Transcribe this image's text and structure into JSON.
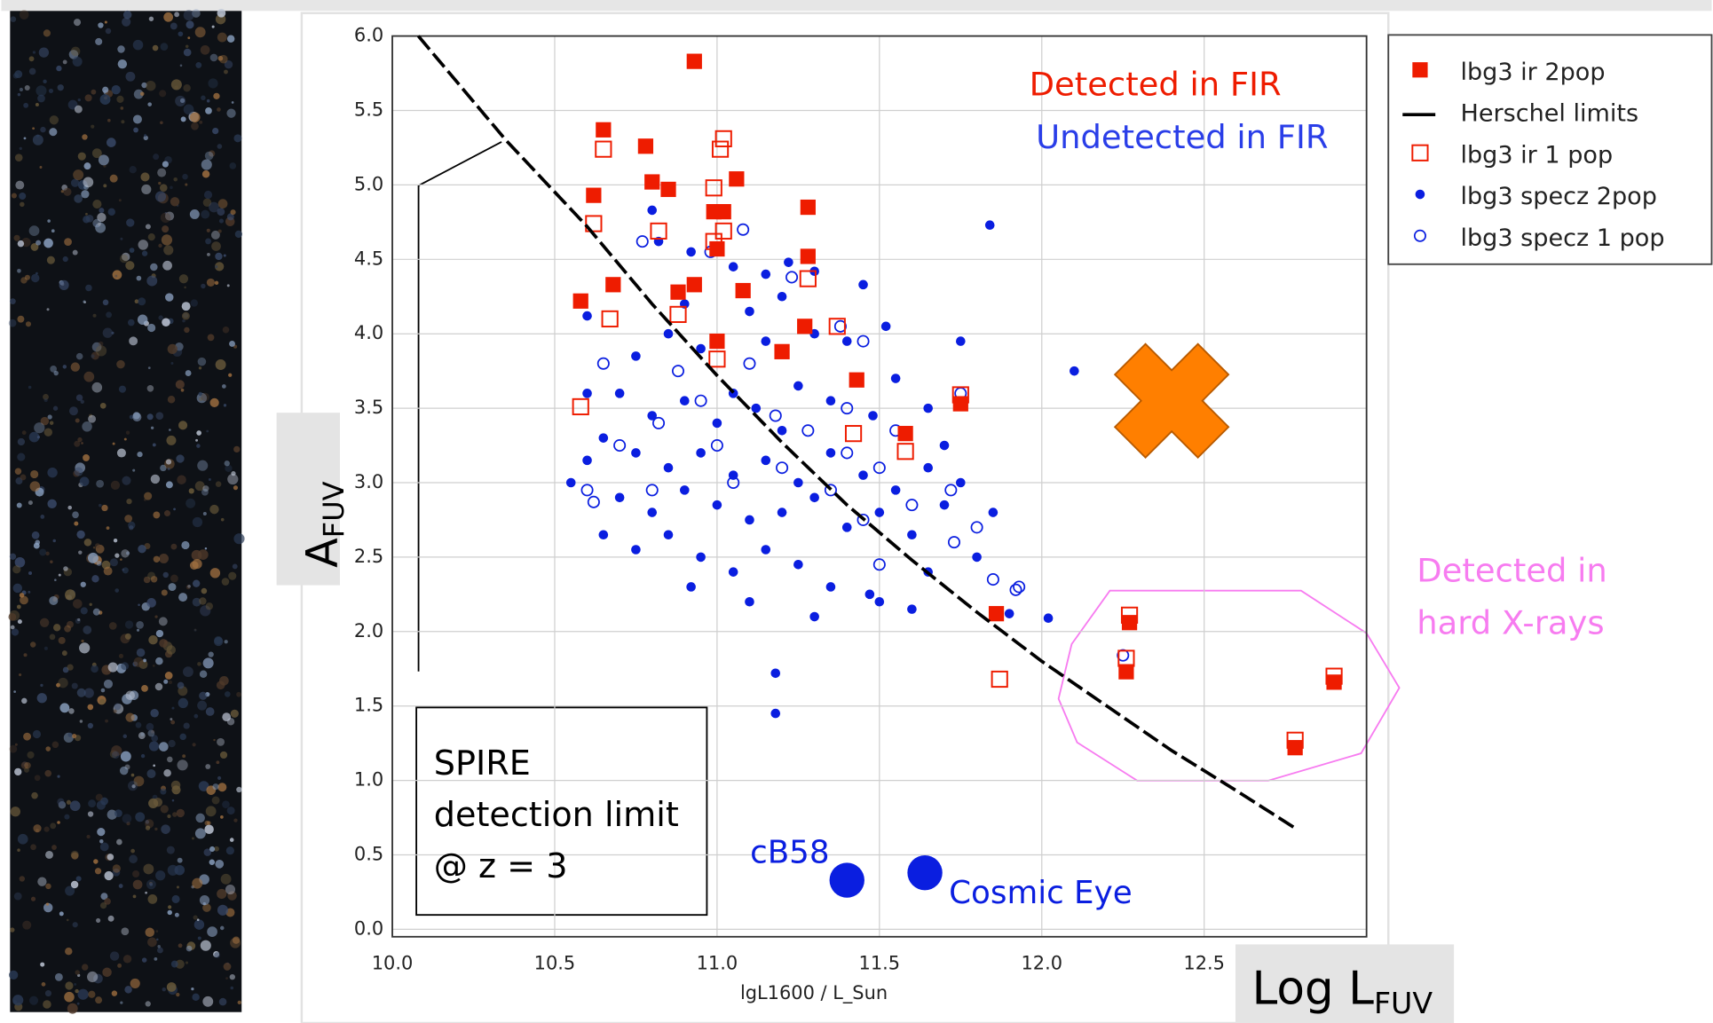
{
  "chart_data": {
    "type": "scatter",
    "x_label": "lgL1600 / L_Sun",
    "y_label_big": {
      "main": "A",
      "sub": "FUV"
    },
    "x_label_big": {
      "main": "Log L",
      "sub": "FUV"
    },
    "xlim": [
      10.0,
      13.0
    ],
    "ylim": [
      -0.05,
      6.0
    ],
    "xticks": [
      {
        "value": 10,
        "label": "10.0"
      },
      10.5,
      {
        "value": 11,
        "label": "11.0"
      },
      11.5,
      {
        "value": 12,
        "label": "12.0"
      },
      12.5
    ],
    "yticks": [
      {
        "value": 0,
        "label": "0.0"
      },
      0.5,
      {
        "value": 1,
        "label": "1.0"
      },
      1.5,
      {
        "value": 2,
        "label": "2.0"
      },
      2.5,
      {
        "value": 3,
        "label": "3.0"
      },
      3.5,
      {
        "value": 4,
        "label": "4.0"
      },
      4.5,
      {
        "value": 5,
        "label": "5.0"
      },
      5.5,
      {
        "value": 6,
        "label": "6.0"
      }
    ],
    "grid": true,
    "series": [
      {
        "name": "lbg3 ir 2pop",
        "type": "scatter",
        "marker": "square-filled",
        "color": "#ee1c00",
        "x": [
          10.93,
          10.65,
          10.78,
          10.62,
          10.8,
          10.85,
          11.06,
          11.02,
          10.99,
          11.28,
          11.0,
          11.28,
          10.58,
          10.68,
          10.88,
          10.93,
          11.08,
          11.0,
          11.2,
          11.27,
          11.43,
          11.58,
          11.75,
          11.86,
          12.27,
          12.26,
          12.78,
          12.9
        ],
        "values": [
          5.83,
          5.37,
          5.26,
          4.93,
          5.02,
          4.97,
          5.04,
          4.82,
          4.82,
          4.85,
          4.57,
          4.52,
          4.22,
          4.33,
          4.28,
          4.33,
          4.29,
          3.95,
          3.88,
          4.05,
          3.69,
          3.33,
          3.53,
          2.12,
          2.06,
          1.73,
          1.22,
          1.66
        ]
      },
      {
        "name": "Herschel limits",
        "type": "line",
        "color": "#000000",
        "x": [
          10.08,
          10.35,
          10.6,
          10.8,
          11.0,
          11.2,
          11.4,
          11.6,
          11.8,
          12.0,
          12.2,
          12.4,
          12.6,
          12.78
        ],
        "values": [
          6.0,
          5.3,
          4.72,
          4.2,
          3.72,
          3.27,
          2.85,
          2.48,
          2.13,
          1.8,
          1.5,
          1.2,
          0.93,
          0.68
        ]
      },
      {
        "name": "lbg3 ir 1 pop",
        "type": "scatter",
        "marker": "square-open",
        "color": "#ee1c00",
        "x": [
          10.65,
          11.02,
          11.01,
          10.99,
          11.02,
          10.62,
          10.82,
          10.99,
          10.67,
          10.88,
          11.0,
          11.28,
          11.37,
          10.58,
          11.42,
          11.58,
          11.75,
          11.87,
          12.26,
          12.27,
          12.78,
          12.9
        ],
        "values": [
          5.24,
          5.31,
          5.24,
          4.98,
          4.69,
          4.74,
          4.69,
          4.62,
          4.1,
          4.13,
          3.83,
          4.37,
          4.05,
          3.51,
          3.33,
          3.21,
          3.59,
          1.68,
          1.82,
          2.11,
          1.27,
          1.7
        ]
      },
      {
        "name": "lbg3 specz 2pop",
        "type": "scatter",
        "marker": "dot-filled",
        "color": "#0a1ee0",
        "x": [
          10.8,
          10.82,
          10.92,
          11.05,
          11.15,
          11.22,
          11.3,
          11.45,
          10.9,
          11.1,
          11.2,
          10.85,
          10.95,
          11.15,
          11.3,
          11.4,
          11.52,
          11.75,
          12.1,
          11.84,
          10.6,
          10.75,
          10.7,
          10.8,
          10.9,
          11.0,
          11.05,
          11.12,
          11.2,
          11.25,
          11.35,
          11.48,
          11.55,
          11.65,
          10.65,
          10.75,
          10.85,
          10.95,
          11.05,
          11.15,
          11.25,
          11.35,
          11.45,
          11.55,
          11.65,
          10.6,
          10.55,
          10.7,
          10.8,
          10.9,
          11.0,
          11.1,
          11.2,
          11.3,
          11.4,
          11.5,
          11.6,
          11.7,
          10.75,
          10.85,
          10.95,
          11.05,
          11.15,
          11.25,
          11.35,
          11.5,
          11.65,
          11.8,
          10.65,
          10.92,
          11.1,
          11.3,
          11.47,
          11.6,
          11.9,
          12.02,
          11.18,
          11.18,
          10.6,
          11.7,
          11.85,
          11.75,
          12.26
        ],
        "values": [
          4.83,
          4.62,
          4.55,
          4.45,
          4.4,
          4.48,
          4.42,
          4.33,
          4.2,
          4.15,
          4.25,
          4.0,
          3.9,
          3.95,
          4.0,
          3.95,
          4.05,
          3.95,
          3.75,
          4.73,
          4.12,
          3.85,
          3.6,
          3.45,
          3.55,
          3.4,
          3.6,
          3.5,
          3.35,
          3.65,
          3.55,
          3.45,
          3.7,
          3.5,
          3.3,
          3.2,
          3.1,
          3.2,
          3.05,
          3.15,
          3.0,
          3.2,
          3.05,
          2.95,
          3.1,
          3.15,
          3.0,
          2.9,
          2.8,
          2.95,
          2.85,
          2.75,
          2.8,
          2.9,
          2.7,
          2.8,
          2.65,
          2.85,
          2.55,
          2.65,
          2.5,
          2.4,
          2.55,
          2.45,
          2.3,
          2.2,
          2.4,
          2.5,
          2.65,
          2.3,
          2.2,
          2.1,
          2.25,
          2.15,
          2.12,
          2.09,
          1.72,
          1.45,
          3.6,
          3.25,
          2.8,
          3.0,
          1.75
        ]
      },
      {
        "name": "lbg3 specz 1 pop",
        "type": "scatter",
        "marker": "dot-open",
        "color": "#0a1ee0",
        "x": [
          10.77,
          10.98,
          11.08,
          11.23,
          11.38,
          11.45,
          10.65,
          10.88,
          10.95,
          11.1,
          11.28,
          11.4,
          11.5,
          11.55,
          11.75,
          10.7,
          10.82,
          11.0,
          11.18,
          11.35,
          11.45,
          11.6,
          11.72,
          11.8,
          10.6,
          10.62,
          10.8,
          11.05,
          11.5,
          11.73,
          11.85,
          11.93,
          11.92,
          12.25,
          11.4,
          11.2
        ],
        "values": [
          4.62,
          4.55,
          4.7,
          4.38,
          4.05,
          3.95,
          3.8,
          3.75,
          3.55,
          3.8,
          3.35,
          3.5,
          3.1,
          3.35,
          3.6,
          3.25,
          3.4,
          3.25,
          3.45,
          2.95,
          2.75,
          2.85,
          2.95,
          2.7,
          2.95,
          2.87,
          2.95,
          3.0,
          2.45,
          2.6,
          2.35,
          2.3,
          2.28,
          1.84,
          3.2,
          3.1
        ]
      }
    ],
    "highlights": [
      {
        "label": "cB58",
        "x": 11.4,
        "y": 0.33,
        "color": "#0a1ee0"
      },
      {
        "label": "Cosmic Eye",
        "x": 11.64,
        "y": 0.38,
        "color": "#0a1ee0"
      }
    ],
    "cross_marker": {
      "x": 12.4,
      "y": 3.55,
      "color": "#ff7f00"
    },
    "annotations": {
      "detected": {
        "text": "Detected in FIR",
        "color": "#ee1c00"
      },
      "undetected": {
        "text": "Undetected in FIR",
        "color": "#2a3ee8"
      },
      "xray": {
        "lines": [
          "Detected in",
          "hard X-rays"
        ],
        "color": "#f77cf0"
      },
      "spire": [
        "SPIRE",
        "detection limit",
        "@ z = 3"
      ]
    }
  }
}
